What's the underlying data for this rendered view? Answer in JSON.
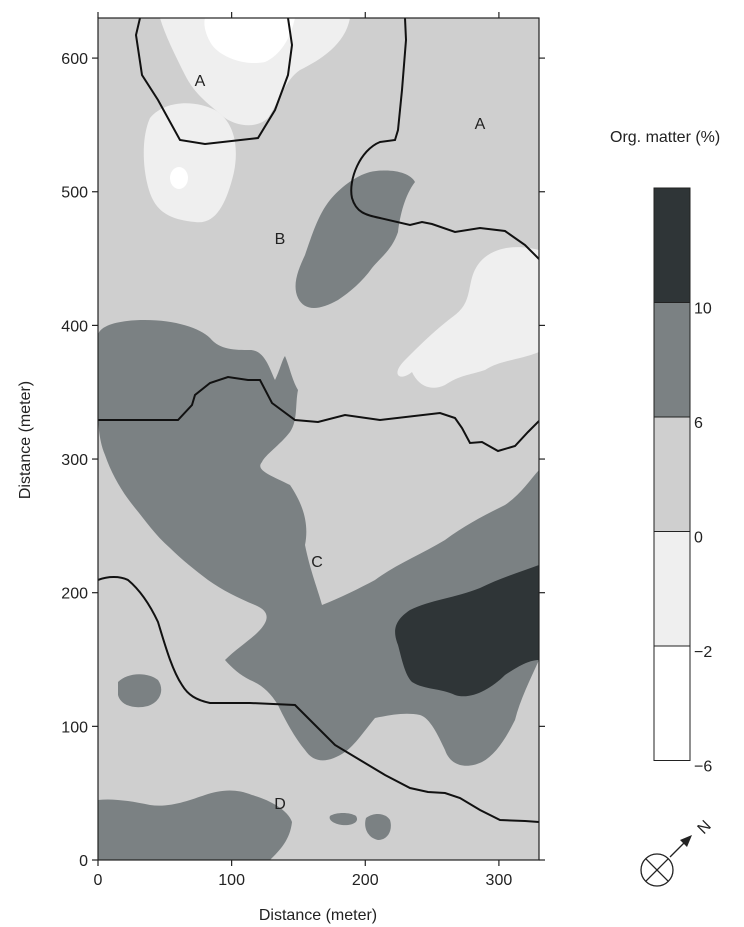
{
  "map": {
    "xlabel": "Distance (meter)",
    "ylabel": "Distance (meter)",
    "xlim": [
      0,
      330
    ],
    "ylim": [
      0,
      630
    ],
    "x_ticks": [
      0,
      100,
      200,
      300
    ],
    "y_ticks": [
      0,
      100,
      200,
      300,
      400,
      500,
      600
    ],
    "zone_labels": [
      "A",
      "A",
      "B",
      "C",
      "D"
    ]
  },
  "legend": {
    "title": "Org. matter (%)",
    "breaks": [
      "10",
      "6",
      "0",
      "−2",
      "−6"
    ],
    "colors": [
      "#2f3537",
      "#7b8183",
      "#cfcfcf",
      "#efefef",
      "#ffffff"
    ]
  },
  "colors": {
    "background_class": "#cfcfcf",
    "boundary_line": "#111111"
  },
  "north_arrow": {
    "label": "N",
    "icon": "north-arrow-icon"
  }
}
